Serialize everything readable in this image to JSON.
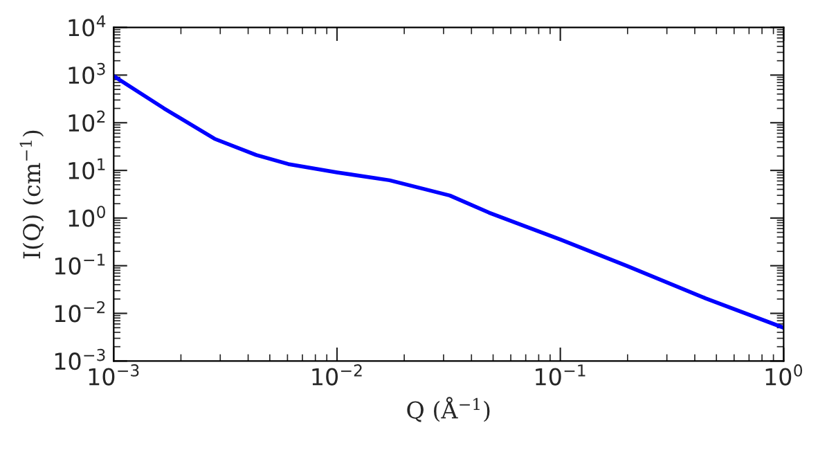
{
  "chart_data": {
    "type": "line",
    "xlabel": "Q (Å$^{−1}$)",
    "ylabel": "I(Q) (cm$^{−1}$)",
    "log": "xy",
    "grid": false,
    "legend": false,
    "marker": "none",
    "line_style": "solid",
    "x": [
      0.001,
      0.00168,
      0.00283,
      0.00435,
      0.00605,
      0.01,
      0.0172,
      0.032,
      0.0479,
      0.1,
      0.199,
      0.447,
      1
    ],
    "series": [
      {
        "color": "#0000ff",
        "values": [
          955,
          200,
          46,
          21,
          13.6,
          9.1,
          6.2,
          2.97,
          1.3,
          0.355,
          0.099,
          0.0207,
          0.005
        ]
      }
    ],
    "xlim": [
      0.001,
      1
    ],
    "ylim": [
      0.001,
      10000
    ],
    "xticks": [
      {
        "value": 0.001,
        "label": "10$^{−3}$"
      },
      {
        "value": 0.01,
        "label": "10$^{−2}$"
      },
      {
        "value": 0.1,
        "label": "10$^{−1}$"
      },
      {
        "value": 1,
        "label": "10$^{0}$"
      }
    ],
    "yticks": [
      {
        "value": 0.001,
        "label": "10$^{−3}$"
      },
      {
        "value": 0.01,
        "label": "10$^{−2}$"
      },
      {
        "value": 0.1,
        "label": "10$^{−1}$"
      },
      {
        "value": 1,
        "label": "10$^{0}$"
      },
      {
        "value": 10,
        "label": "10$^{1}$"
      },
      {
        "value": 100,
        "label": "10$^{2}$"
      },
      {
        "value": 1000,
        "label": "10$^{3}$"
      },
      {
        "value": 10000,
        "label": "10$^{4}$"
      }
    ]
  }
}
